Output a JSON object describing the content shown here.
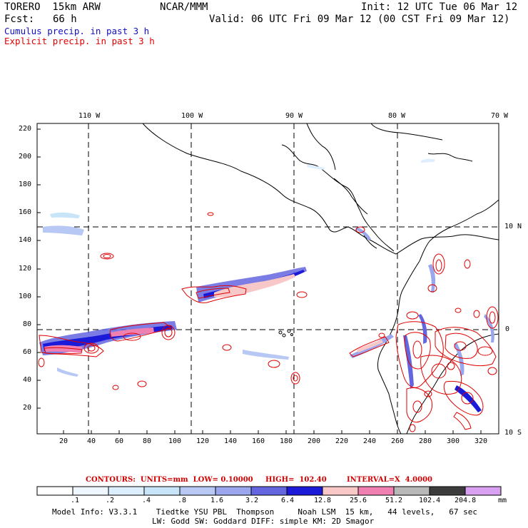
{
  "header": {
    "model": "TORERO  15km ARW",
    "center": "NCAR/MMM",
    "init": "Init: 12 UTC Tue 06 Mar 12",
    "fcst_label": "Fcst:",
    "fcst_value": "66 h",
    "valid": "Valid: 06 UTC Fri 09 Mar 12 (00 CST Fri 09 Mar 12)",
    "legend_cumulus": "Cumulus precip. in past 3 h",
    "legend_explicit": "Explicit precip. in past 3 h"
  },
  "map": {
    "lon_labels": [
      "110 W",
      "100 W",
      "90 W",
      "80 W",
      "70 W"
    ],
    "lat_labels": [
      "10 N",
      "0",
      "10 S"
    ],
    "y_ticks": [
      "220",
      "200",
      "180",
      "160",
      "140",
      "120",
      "100",
      "80",
      "60",
      "40",
      "20"
    ],
    "x_ticks": [
      "20",
      "40",
      "60",
      "80",
      "100",
      "120",
      "140",
      "160",
      "180",
      "200",
      "220",
      "240",
      "260",
      "280",
      "300",
      "320"
    ]
  },
  "contours": {
    "units": "CONTOURS:  UNITS=mm  LOW= 0.10000",
    "high": "HIGH=  102.40",
    "interval": "INTERVAL=X  4.0000"
  },
  "colorbar": {
    "unit": "mm",
    "labels": [
      ".1",
      ".2",
      ".4",
      ".8",
      "1.6",
      "3.2",
      "6.4",
      "12.8",
      "25.6",
      "51.2",
      "102.4",
      "204.8"
    ],
    "colors": [
      "#ffffff",
      "#eef6ff",
      "#ddeefe",
      "#c8e4f8",
      "#b8c8f4",
      "#9aa6ee",
      "#6466e0",
      "#1a1ad8",
      "#f8c8c8",
      "#f080b0",
      "#b8b8b8",
      "#3c3c3c",
      "#d8a0f0"
    ]
  },
  "footer": {
    "line1": "Model Info: V3.3.1    Tiedtke YSU PBL  Thompson     Noah LSM  15 km,   44 levels,   67 sec",
    "line2": "LW: Godd SW: Goddard DIFF: simple KM: 2D Smagor"
  }
}
